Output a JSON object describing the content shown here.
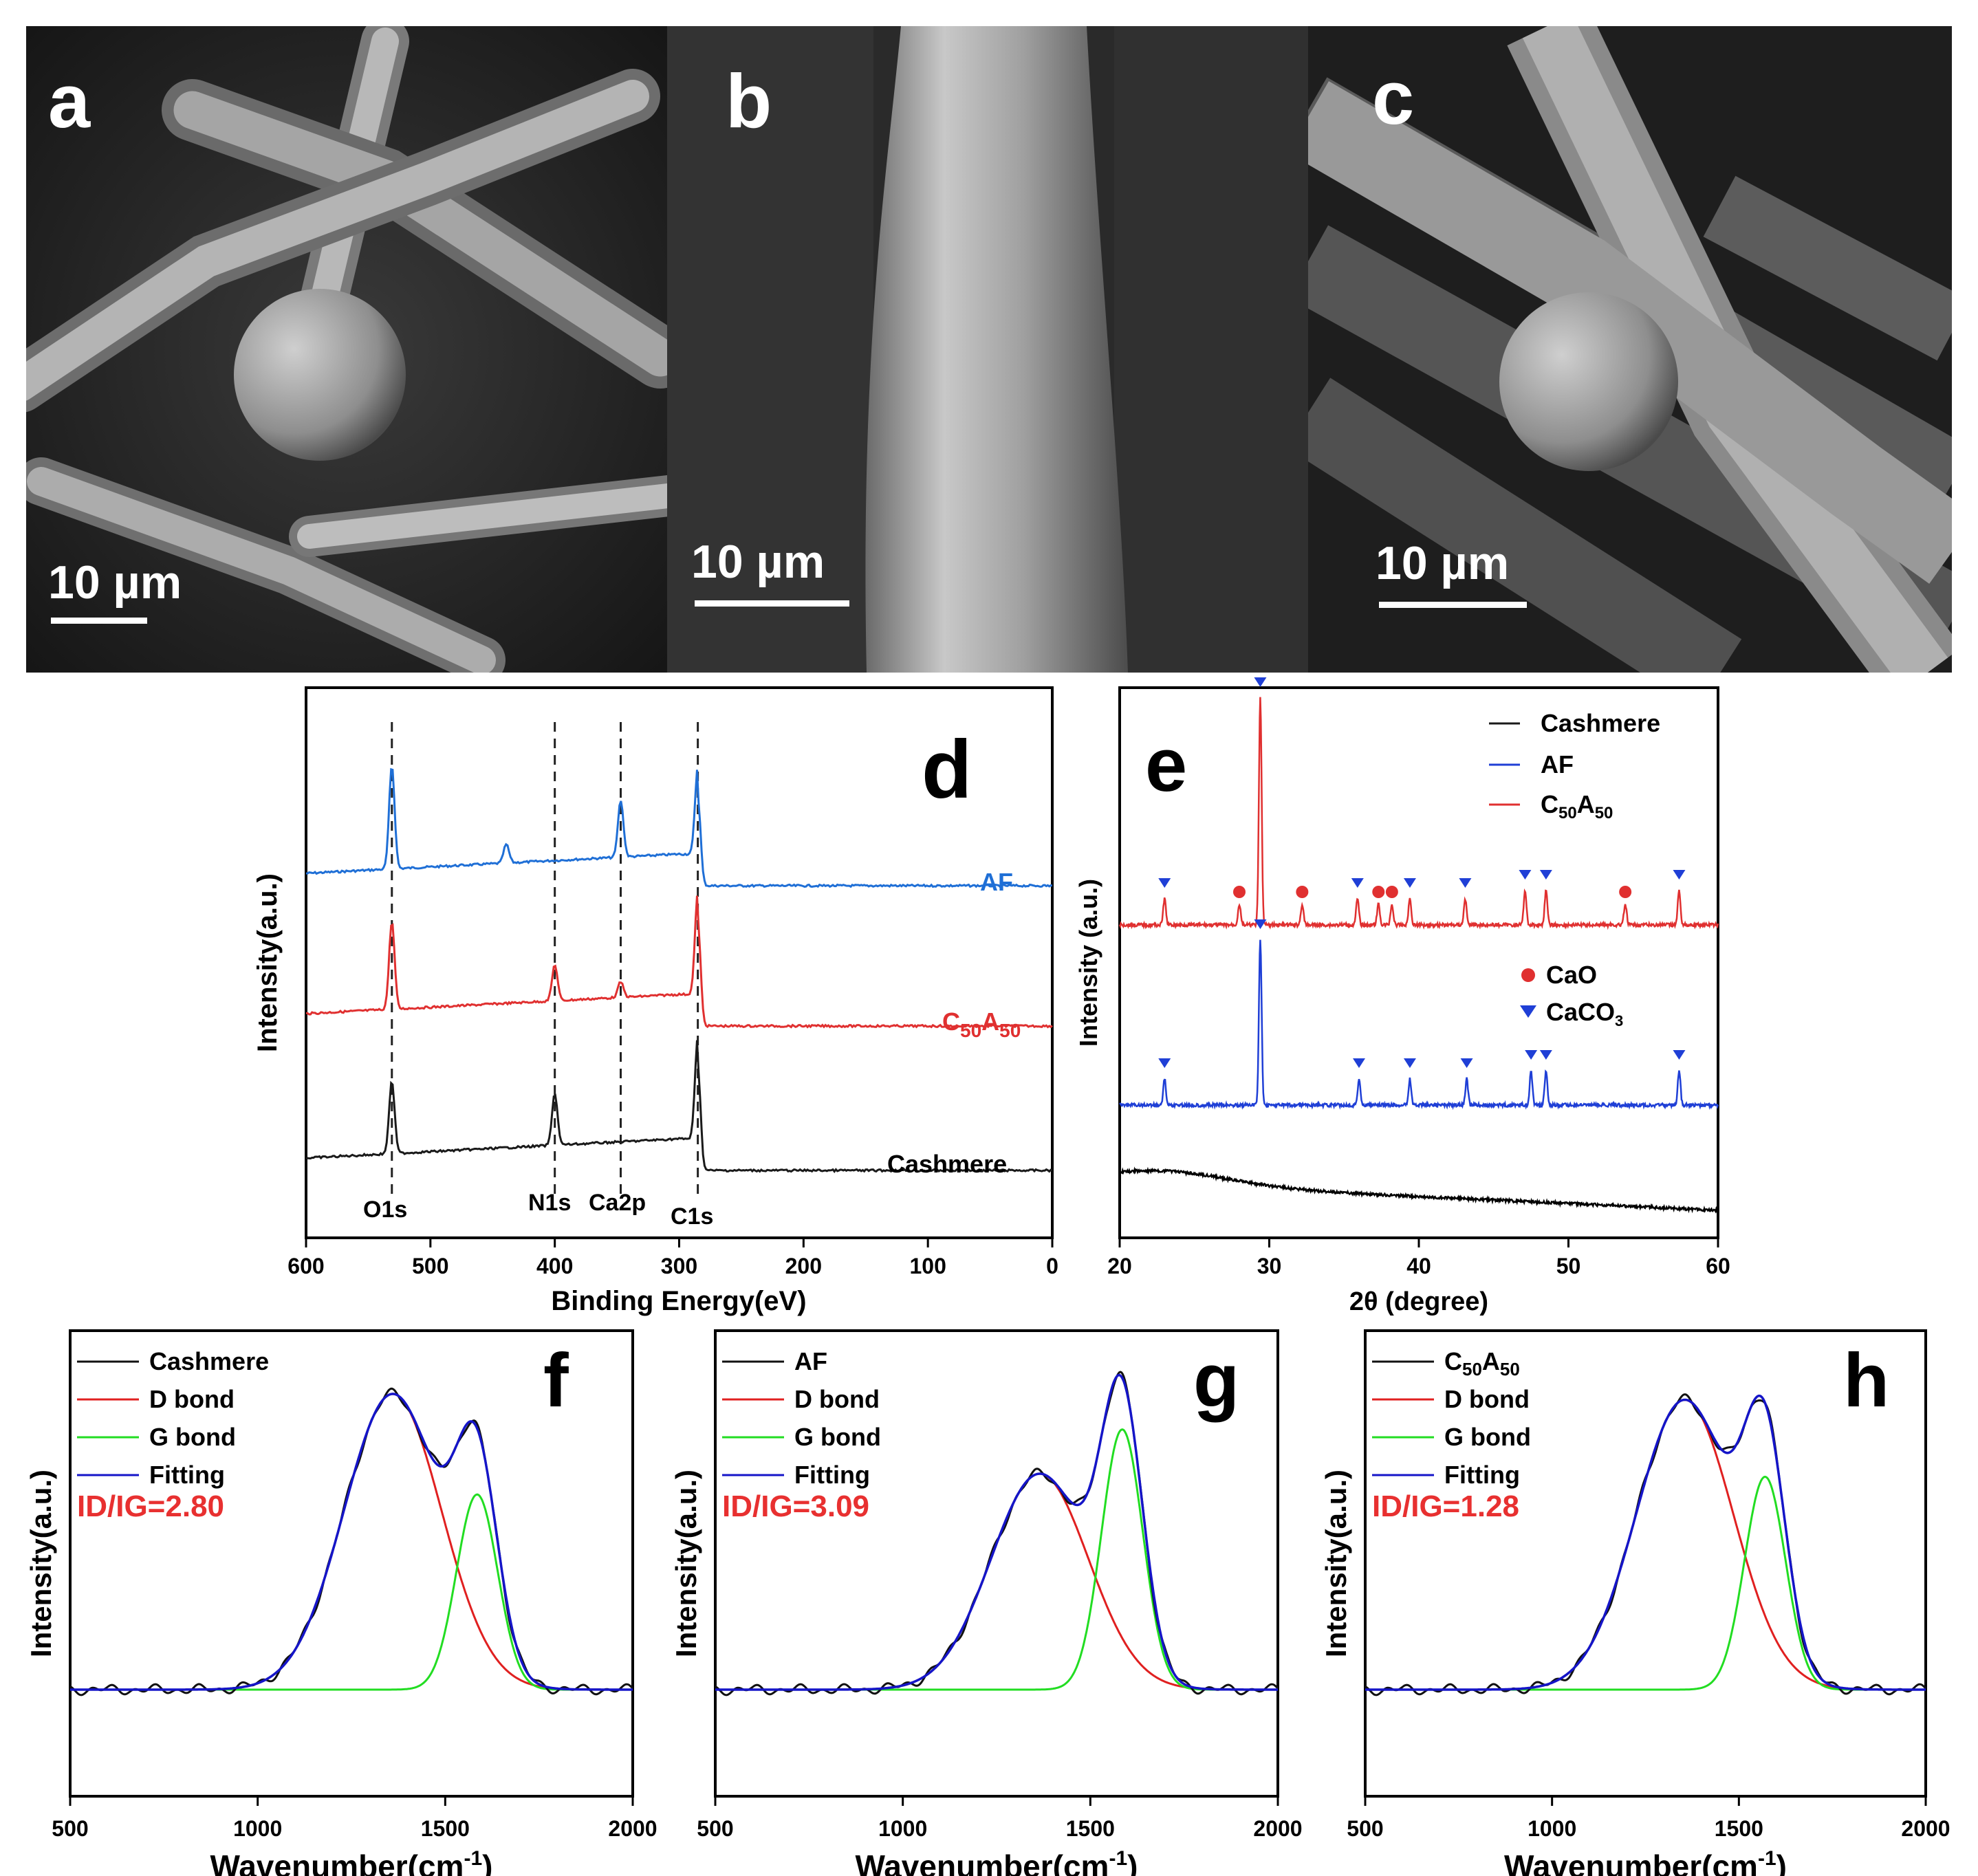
{
  "sem_panels": [
    {
      "letter": "a",
      "scale": "10 µm"
    },
    {
      "letter": "b",
      "scale": "10 µm"
    },
    {
      "letter": "c",
      "scale": "10 µm"
    }
  ],
  "colors": {
    "cashmere": "#1a1a1a",
    "af": "#1f6fd6",
    "c50a50": "#e03030",
    "d_bond": "#e02020",
    "g_bond": "#22dd22",
    "fitting": "#1515c8",
    "ratio_text": "#e83030"
  },
  "chart_data": [
    {
      "panel": "d",
      "type": "line",
      "xlabel": "Binding Energy(eV)",
      "ylabel": "Intensity(a.u.)",
      "xlim": [
        600,
        0
      ],
      "xticks": [
        "600",
        "500",
        "400",
        "300",
        "200",
        "100",
        "0"
      ],
      "reference_lines": [
        531,
        400,
        347,
        285
      ],
      "peak_labels": [
        "O1s",
        "N1s",
        "Ca2p",
        "C1s"
      ],
      "series": [
        {
          "name": "AF",
          "peaks": [
            [
              531,
              1.0
            ],
            [
              439,
              0.18
            ],
            [
              347,
              0.55
            ],
            [
              285,
              0.85
            ]
          ]
        },
        {
          "name": "C50A50",
          "peaks": [
            [
              531,
              0.85
            ],
            [
              400,
              0.35
            ],
            [
              347,
              0.15
            ],
            [
              285,
              1.0
            ]
          ]
        },
        {
          "name": "Cashmere",
          "peaks": [
            [
              531,
              0.7
            ],
            [
              400,
              0.5
            ],
            [
              285,
              1.0
            ]
          ]
        }
      ]
    },
    {
      "panel": "e",
      "type": "line",
      "xlabel": "2θ (degree)",
      "ylabel": "Intensity (a.u.)",
      "xlim": [
        20,
        60
      ],
      "xticks": [
        "20",
        "30",
        "40",
        "50",
        "60"
      ],
      "legend": [
        "Cashmere",
        "AF",
        "C50A50"
      ],
      "marker_legend": [
        "CaO",
        "CaCO3"
      ],
      "series": [
        {
          "name": "C50A50",
          "caco3_peaks": [
            23.0,
            29.4,
            35.9,
            39.4,
            43.1,
            47.1,
            48.5,
            57.4
          ],
          "cao_peaks": [
            28.0,
            32.2,
            37.3,
            38.2,
            53.8
          ]
        },
        {
          "name": "AF",
          "caco3_peaks": [
            23.0,
            29.4,
            36.0,
            39.4,
            43.2,
            47.5,
            48.5,
            57.4
          ]
        },
        {
          "name": "Cashmere",
          "caco3_peaks": []
        }
      ]
    },
    {
      "panel": "f",
      "type": "line",
      "xlabel": "Wavenumber(cm",
      "xlabel_sup": "-1",
      "xlabel_end": ")",
      "ylabel": "Intensity(a.u.)",
      "xlim": [
        500,
        2000
      ],
      "xticks": [
        "500",
        "1000",
        "1500",
        "2000"
      ],
      "legend": [
        "Cashmere",
        "D bond",
        "G bond",
        "Fitting"
      ],
      "ratio": "ID/IG=2.80",
      "d_peak": {
        "center": 1360,
        "height": 1.0
      },
      "g_peak": {
        "center": 1585,
        "height": 0.66
      }
    },
    {
      "panel": "g",
      "type": "line",
      "xlabel": "Wavenumber(cm",
      "xlabel_sup": "-1",
      "xlabel_end": ")",
      "ylabel": "Intensity(a.u.)",
      "xlim": [
        500,
        2000
      ],
      "xticks": [
        "500",
        "1000",
        "1500",
        "2000"
      ],
      "legend": [
        "AF",
        "D bond",
        "G bond",
        "Fitting"
      ],
      "ratio": "ID/IG=3.09",
      "d_peak": {
        "center": 1365,
        "height": 0.73
      },
      "g_peak": {
        "center": 1585,
        "height": 0.88
      }
    },
    {
      "panel": "h",
      "type": "line",
      "xlabel": "Wavenumber(cm",
      "xlabel_sup": "-1",
      "xlabel_end": ")",
      "ylabel": "Intensity(a.u.)",
      "xlim": [
        500,
        2000
      ],
      "xticks": [
        "500",
        "1000",
        "1500",
        "2000"
      ],
      "legend": [
        "C50A50",
        "D bond",
        "G bond",
        "Fitting"
      ],
      "ratio": "ID/IG=1.28",
      "d_peak": {
        "center": 1355,
        "height": 0.98
      },
      "g_peak": {
        "center": 1570,
        "height": 0.72
      }
    }
  ]
}
